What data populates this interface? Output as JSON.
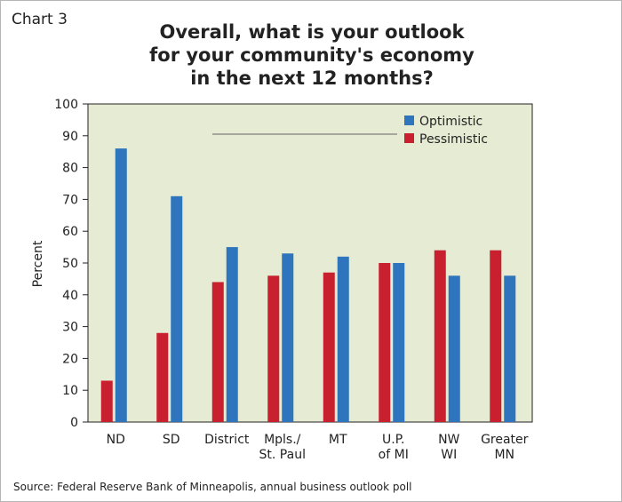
{
  "figure_label": "Chart 3",
  "source": "Source: Federal Reserve Bank of Minneapolis, annual business outlook poll",
  "chart_data": {
    "type": "bar",
    "title_lines": [
      "Overall, what is your outlook",
      "for your community's economy",
      "in the next 12 months?"
    ],
    "ylabel": "Percent",
    "xlabel": "",
    "ylim": [
      0,
      100
    ],
    "yticks": [
      0,
      10,
      20,
      30,
      40,
      50,
      60,
      70,
      80,
      90,
      100
    ],
    "grid": false,
    "legend_position": "top-right",
    "categories": [
      [
        "ND"
      ],
      [
        "SD"
      ],
      [
        "District"
      ],
      [
        "Mpls./",
        "St. Paul"
      ],
      [
        "MT"
      ],
      [
        "U.P.",
        "of MI"
      ],
      [
        "NW",
        "WI"
      ],
      [
        "Greater",
        "MN"
      ]
    ],
    "series": [
      {
        "name": "Pessimistic",
        "color": "#c8202e",
        "values": [
          13,
          28,
          44,
          46,
          47,
          50,
          54,
          54
        ]
      },
      {
        "name": "Optimistic",
        "color": "#2e75bd",
        "values": [
          86,
          71,
          55,
          53,
          52,
          50,
          46,
          46
        ]
      }
    ],
    "legend_order": [
      "Optimistic",
      "Pessimistic"
    ],
    "colors": {
      "plot_background": "#e6ebd3",
      "axis": "#222222"
    }
  }
}
